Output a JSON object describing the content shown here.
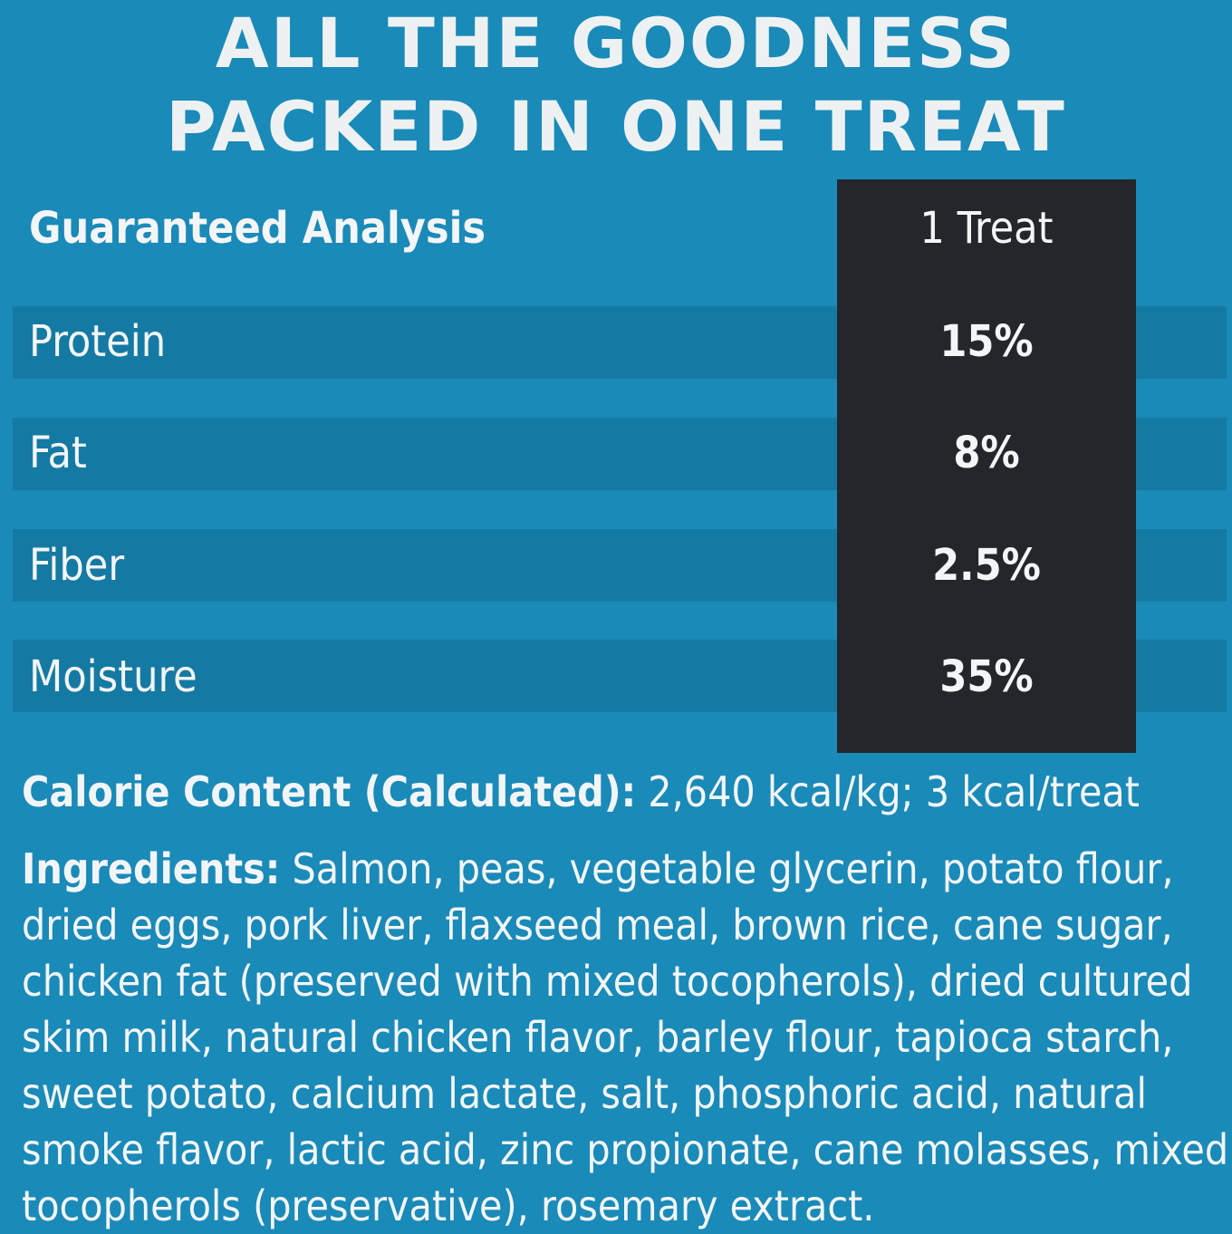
{
  "headline": {
    "line1": "ALL THE GOODNESS",
    "line2": "PACKED IN ONE TREAT"
  },
  "analysis": {
    "header_label": "Guaranteed Analysis",
    "header_value": "1 Treat",
    "rows": [
      {
        "label": "Protein",
        "value": "15%"
      },
      {
        "label": "Fat",
        "value": "8%"
      },
      {
        "label": "Fiber",
        "value": "2.5%"
      },
      {
        "label": "Moisture",
        "value": "35%"
      }
    ]
  },
  "calorie": {
    "label": "Calorie Content (Calculated):",
    "value": " 2,640 kcal/kg; 3 kcal/treat"
  },
  "ingredients": {
    "label": "Ingredients:",
    "lines": [
      " Salmon, peas, vegetable glycerin, potato flour,",
      "dried eggs, pork liver, flaxseed meal, brown rice, cane sugar,",
      "chicken fat (preserved with mixed tocopherols), dried cultured",
      "skim milk, natural chicken flavor, barley flour, tapioca starch,",
      "sweet potato, calcium lactate, salt, phosphoric acid, natural",
      "smoke flavor, lactic acid, zinc propionate, cane molasses, mixed",
      "tocopherols (preservative), rosemary extract."
    ]
  },
  "colors": {
    "background": "#1a8ab8",
    "band": "#157aa3",
    "value_column": "#25262b",
    "text": "#f2f5f7"
  }
}
